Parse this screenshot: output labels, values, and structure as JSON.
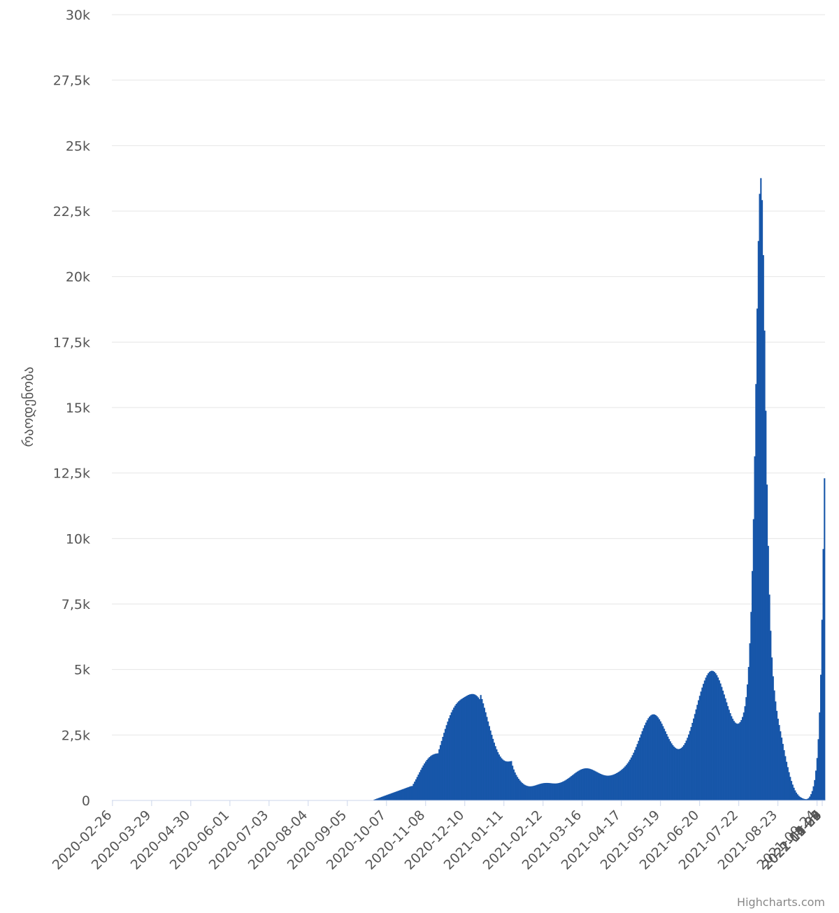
{
  "chart_data": {
    "type": "bar",
    "title": "",
    "xlabel": "",
    "ylabel": "რაოდენობა",
    "ylim": [
      0,
      30000
    ],
    "y_ticks": [
      "0",
      "2,5k",
      "5k",
      "7,5k",
      "10k",
      "12,5k",
      "15k",
      "17,5k",
      "20k",
      "22,5k",
      "25k",
      "27,5k",
      "30k"
    ],
    "x_ticks": [
      "2020-02-26",
      "2020-03-29",
      "2020-04-30",
      "2020-06-01",
      "2020-07-03",
      "2020-08-04",
      "2020-09-05",
      "2020-10-07",
      "2020-11-08",
      "2020-12-10",
      "2021-01-11",
      "2021-02-12",
      "2021-03-16",
      "2021-04-17",
      "2021-05-19",
      "2021-06-20",
      "2021-07-22",
      "2021-08-23",
      "2021-09-24",
      "2021-10-26",
      "2021-11-27",
      "2021-12-29",
      "2022-01-30",
      "2022-03-03",
      "2022-04-04",
      "2022-05-29"
    ],
    "x_start": "2020-02-26",
    "interval": "daily",
    "grid": true,
    "bar_color": "#1756a9",
    "credit": "Highcharts.com",
    "series": [
      {
        "values": [
          0,
          0,
          0,
          0,
          0,
          0,
          0,
          0,
          0,
          0,
          0,
          0,
          0,
          0,
          0,
          0,
          0,
          0,
          0,
          0,
          0,
          0,
          0,
          0,
          0,
          0,
          0,
          0,
          0,
          0,
          0,
          0,
          0,
          0,
          0,
          0,
          0,
          0,
          0,
          0,
          0,
          0,
          0,
          0,
          0,
          0,
          0,
          0,
          0,
          0,
          0,
          0,
          0,
          0,
          0,
          0,
          0,
          0,
          0,
          0,
          0,
          0,
          0,
          0,
          0,
          0,
          0,
          0,
          0,
          0,
          0,
          0,
          0,
          0,
          0,
          0,
          0,
          0,
          0,
          0,
          0,
          0,
          0,
          0,
          0,
          0,
          0,
          0,
          0,
          0,
          0,
          0,
          0,
          0,
          0,
          0,
          0,
          0,
          0,
          0,
          0,
          0,
          0,
          0,
          0,
          0,
          0,
          0,
          0,
          0,
          0,
          0,
          0,
          0,
          0,
          0,
          0,
          0,
          0,
          0,
          0,
          0,
          0,
          0,
          0,
          0,
          0,
          0,
          0,
          0,
          0,
          0,
          0,
          0,
          0,
          0,
          0,
          0,
          0,
          0,
          0,
          0,
          0,
          0,
          0,
          0,
          0,
          0,
          0,
          0,
          0,
          0,
          0,
          0,
          0,
          0,
          0,
          0,
          0,
          0,
          0,
          0,
          0,
          0,
          0,
          0,
          0,
          0,
          0,
          0,
          0,
          0,
          0,
          0,
          0,
          0,
          0,
          0,
          0,
          0,
          0,
          0,
          0,
          0,
          0,
          0,
          0,
          0,
          0,
          0,
          0,
          0,
          0,
          0,
          0,
          0,
          0,
          0,
          0,
          0,
          0,
          0,
          0,
          0,
          0,
          0,
          0,
          0,
          0,
          0,
          0,
          0,
          0,
          0,
          34,
          51,
          68,
          85,
          102,
          119,
          136,
          154,
          171,
          188,
          205,
          222,
          239,
          256,
          273,
          290,
          307,
          324,
          341,
          358,
          375,
          392,
          409,
          426,
          443,
          460,
          478,
          495,
          512,
          529,
          546,
          552,
          634,
          719,
          807,
          897,
          988,
          1079,
          1168,
          1254,
          1336,
          1413,
          1484,
          1548,
          1604,
          1652,
          1693,
          1726,
          1751,
          1770,
          1784,
          1793,
          1800,
          1957,
          2115,
          2273,
          2429,
          2583,
          2732,
          2875,
          3011,
          3138,
          3255,
          3362,
          3458,
          3544,
          3619,
          3684,
          3740,
          3788,
          3829,
          3864,
          3894,
          3924,
          3953,
          3981,
          4007,
          4030,
          4048,
          4060,
          4065,
          4061,
          4047,
          4021,
          3983,
          3932,
          3868,
          4026,
          3870,
          3707,
          3539,
          3366,
          3191,
          3015,
          2841,
          2671,
          2507,
          2352,
          2207,
          2073,
          1952,
          1846,
          1754,
          1676,
          1613,
          1564,
          1528,
          1504,
          1491,
          1486,
          1488,
          1495,
          1504,
          1327,
          1184,
          1070,
          976,
          896,
          826,
          764,
          710,
          664,
          626,
          596,
          572,
          555,
          544,
          539,
          540,
          545,
          554,
          566,
          580,
          596,
          611,
          626,
          639,
          650,
          659,
          665,
          668,
          669,
          668,
          665,
          660,
          655,
          651,
          649,
          648,
          651,
          657,
          667,
          680,
          696,
          716,
          739,
          765,
          794,
          825,
          859,
          893,
          929,
          965,
          1001,
          1037,
          1071,
          1103,
          1132,
          1159,
          1182,
          1200,
          1214,
          1224,
          1228,
          1227,
          1222,
          1211,
          1196,
          1178,
          1157,
          1134,
          1109,
          1084,
          1060,
          1036,
          1014,
          994,
          977,
          964,
          954,
          948,
          946,
          949,
          955,
          965,
          979,
          996,
          1017,
          1041,
          1068,
          1098,
          1131,
          1167,
          1207,
          1251,
          1300,
          1355,
          1416,
          1483,
          1557,
          1639,
          1728,
          1825,
          1929,
          2040,
          2156,
          2277,
          2400,
          2523,
          2645,
          2762,
          2872,
          2973,
          3063,
          3140,
          3202,
          3248,
          3277,
          3289,
          3283,
          3260,
          3221,
          3167,
          3099,
          3020,
          2932,
          2837,
          2738,
          2637,
          2536,
          2438,
          2344,
          2258,
          2180,
          2112,
          2056,
          2012,
          1981,
          1964,
          1962,
          1975,
          2005,
          2051,
          2113,
          2191,
          2286,
          2395,
          2519,
          2656,
          2805,
          2963,
          3129,
          3301,
          3476,
          3652,
          3826,
          3996,
          4158,
          4311,
          4452,
          4579,
          4690,
          4783,
          4856,
          4909,
          4941,
          4952,
          4941,
          4909,
          4856,
          4784,
          4694,
          4587,
          4467,
          4335,
          4193,
          4046,
          3896,
          3747,
          3601,
          3462,
          3333,
          3217,
          3118,
          3036,
          2976,
          2940,
          2928,
          2944,
          2989,
          3069,
          3188,
          3358,
          3598,
          3945,
          4429,
          5096,
          6000,
          7200,
          8760,
          10740,
          13140,
          15900,
          18780,
          21360,
          23160,
          23760,
          22920,
          20820,
          17940,
          14880,
          12060,
          9720,
          7860,
          6480,
          5460,
          4740,
          4200,
          3780,
          3420,
          3120,
          2880,
          2640,
          2400,
          2160,
          1920,
          1692,
          1476,
          1272,
          1080,
          900,
          744,
          606,
          486,
          384,
          300,
          234,
          180,
          138,
          108,
          84,
          66,
          54,
          48,
          60,
          90,
          150,
          240,
          360,
          540,
          780,
          1140,
          1620,
          2340,
          3360,
          4800,
          6900,
          9600,
          12300
        ]
      }
    ]
  }
}
